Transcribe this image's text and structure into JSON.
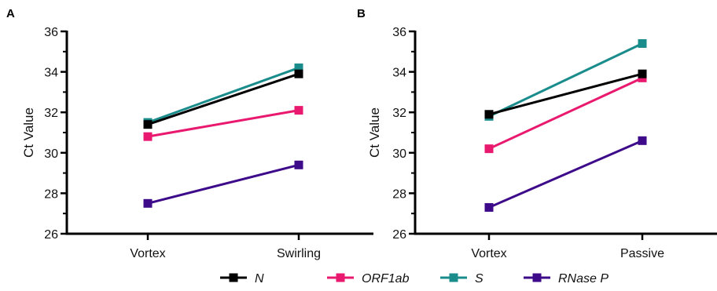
{
  "colors": {
    "N": "#000000",
    "ORF1ab": "#e8196e",
    "S": "#1b8c8c",
    "RNase P": "#3d0a8a"
  },
  "legend": [
    "N",
    "ORF1ab",
    "S",
    "RNase P"
  ],
  "chart_data": [
    {
      "type": "line",
      "panel": "A",
      "ylabel": "Ct Value",
      "ylim": [
        26,
        36
      ],
      "yticks": [
        26,
        28,
        30,
        32,
        34,
        36
      ],
      "categories": [
        "Vortex",
        "Swirling"
      ],
      "series": [
        {
          "name": "RNase P",
          "values": [
            27.5,
            29.4
          ]
        },
        {
          "name": "ORF1ab",
          "values": [
            30.8,
            32.1
          ]
        },
        {
          "name": "S",
          "values": [
            31.5,
            34.2
          ]
        },
        {
          "name": "N",
          "values": [
            31.4,
            33.9
          ]
        }
      ]
    },
    {
      "type": "line",
      "panel": "B",
      "ylabel": "Ct Value",
      "ylim": [
        26,
        36
      ],
      "yticks": [
        26,
        28,
        30,
        32,
        34,
        36
      ],
      "categories": [
        "Vortex",
        "Passive"
      ],
      "series": [
        {
          "name": "RNase P",
          "values": [
            27.3,
            30.6
          ]
        },
        {
          "name": "ORF1ab",
          "values": [
            30.2,
            33.7
          ]
        },
        {
          "name": "S",
          "values": [
            31.8,
            35.4
          ]
        },
        {
          "name": "N",
          "values": [
            31.9,
            33.9
          ]
        }
      ]
    }
  ]
}
